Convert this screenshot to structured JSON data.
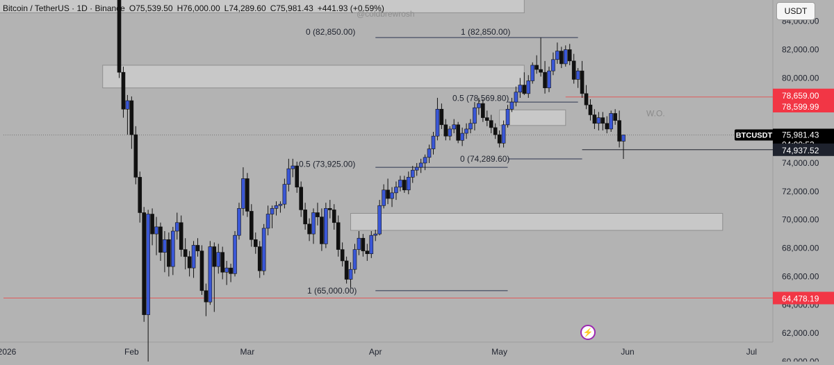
{
  "legend": {
    "symbol": "Bitcoin / TetherUS · 1D · Binance",
    "open": "O75,539.50",
    "high": "H76,000.00",
    "low": "L74,289.60",
    "close": "C75,981.43",
    "change": "+441.93 (+0.59%)"
  },
  "watermark": "@coldbrewrosh",
  "currency_button": "USDT",
  "colors": {
    "background": "#b3b3b3",
    "up_candle": "#3a57d6",
    "down_candle": "#111111",
    "resistance_line": "#e05a5a",
    "label_red": "#f23645",
    "label_dark": "#1e222d"
  },
  "icons": {
    "flash": "lightning-bolt-icon"
  },
  "chart_data": {
    "type": "candlestick",
    "x_axis": {
      "ticks": [
        "2026",
        "Feb",
        "Mar",
        "Apr",
        "May",
        "Jun",
        "Jul"
      ]
    },
    "y_axis": {
      "ticks": [
        "84,000.00",
        "82,000.00",
        "80,000.00",
        "78,000.00",
        "76,000.00",
        "74,000.00",
        "72,000.00",
        "70,000.00",
        "68,000.00",
        "66,000.00",
        "64,000.00",
        "62,000.00",
        "60,000.00"
      ],
      "range": [
        60000,
        85500
      ]
    },
    "price_labels": [
      {
        "text": "78,659.00",
        "value": 78659,
        "style": "red"
      },
      {
        "text": "78,599.99",
        "value": 78599.99,
        "style": "red"
      },
      {
        "text": "75,981.43",
        "value": 75981.43,
        "style": "dark",
        "tag": "BTCUSDT",
        "countdown": "04:00:53"
      },
      {
        "text": "74,937.52",
        "value": 74937.52,
        "style": "dark"
      },
      {
        "text": "64,478.19",
        "value": 64478.19,
        "style": "red"
      }
    ],
    "horizontal_lines": [
      {
        "value": 78659,
        "color": "#e05a5a",
        "from_date": "2026-05-17"
      },
      {
        "value": 64478.19,
        "color": "#e05a5a",
        "from_date": "2026-01-01"
      },
      {
        "value": 74937.52,
        "color": "#1e222d",
        "from_date": "2026-05-21"
      },
      {
        "value": 75981.43,
        "color": "#777777",
        "dotted": true,
        "from_date": "2026-01-01"
      }
    ],
    "annotations": [
      {
        "text": "0 (82,850.00)",
        "value": 82850
      },
      {
        "text": "1 (82,850.00)",
        "value": 82850
      },
      {
        "text": "0.5 (78,569.80)",
        "value": 78569.8
      },
      {
        "text": "0.5 (73,925.00)",
        "value": 73925
      },
      {
        "text": "0 (74,289.60)",
        "value": 74289.6
      },
      {
        "text": "1 (65,000.00)",
        "value": 65000
      },
      {
        "text": "W.O.",
        "value": 77500
      }
    ],
    "zones": [
      {
        "from_date": "2026-01-25",
        "to_date": "2026-05-07",
        "low": 79300,
        "high": 80900
      },
      {
        "from_date": "2026-03-26",
        "to_date": "2026-06-24",
        "low": 69250,
        "high": 70450
      },
      {
        "from_date": "2026-05-01",
        "to_date": "2026-05-17",
        "low": 76650,
        "high": 77750
      },
      {
        "from_date": "2025-12-28",
        "to_date": "2026-05-07",
        "low": 84600,
        "high": 86500
      }
    ],
    "fib_segments": [
      {
        "value": 82850,
        "from_date": "2026-04-01",
        "to_date": "2026-05-20"
      },
      {
        "value": 73700,
        "from_date": "2026-04-01",
        "to_date": "2026-05-03"
      },
      {
        "value": 65000,
        "from_date": "2026-04-01",
        "to_date": "2026-05-03"
      },
      {
        "value": 74289.6,
        "from_date": "2026-05-03",
        "to_date": "2026-05-21"
      },
      {
        "value": 78300,
        "from_date": "2026-05-03",
        "to_date": "2026-05-20"
      }
    ],
    "candles_start_date": "2026-01-28",
    "candles": [
      [
        89000,
        89500,
        85500,
        86000
      ],
      [
        86000,
        86500,
        80000,
        80400
      ],
      [
        80400,
        80800,
        77200,
        77800
      ],
      [
        77800,
        78800,
        76000,
        78400
      ],
      [
        78400,
        78700,
        75000,
        76000
      ],
      [
        76000,
        76600,
        72500,
        73000
      ],
      [
        73000,
        73400,
        69800,
        70500
      ],
      [
        70500,
        70900,
        62800,
        63300
      ],
      [
        63300,
        70700,
        60000,
        70400
      ],
      [
        70400,
        70800,
        68200,
        69000
      ],
      [
        69000,
        70200,
        67500,
        69500
      ],
      [
        69500,
        69800,
        67100,
        67700
      ],
      [
        67700,
        69200,
        66300,
        68600
      ],
      [
        68600,
        69100,
        66000,
        66700
      ],
      [
        66700,
        69500,
        66100,
        69200
      ],
      [
        69200,
        70500,
        68600,
        69800
      ],
      [
        69800,
        70300,
        67400,
        67900
      ],
      [
        67900,
        68700,
        66500,
        67400
      ],
      [
        67400,
        67800,
        66000,
        66600
      ],
      [
        66600,
        68500,
        65900,
        68200
      ],
      [
        68200,
        68700,
        67400,
        67800
      ],
      [
        67800,
        68200,
        64700,
        65000
      ],
      [
        65000,
        65500,
        63200,
        64200
      ],
      [
        64200,
        68500,
        64000,
        68100
      ],
      [
        68100,
        68400,
        63500,
        66700
      ],
      [
        66700,
        68300,
        66200,
        67700
      ],
      [
        67700,
        68100,
        65800,
        66300
      ],
      [
        66300,
        67100,
        65400,
        66600
      ],
      [
        66600,
        66900,
        65600,
        66200
      ],
      [
        66200,
        69200,
        66000,
        68900
      ],
      [
        68900,
        71200,
        68600,
        70800
      ],
      [
        70800,
        73700,
        70300,
        72900
      ],
      [
        72900,
        73300,
        70200,
        70600
      ],
      [
        70600,
        71100,
        68100,
        68600
      ],
      [
        68600,
        69100,
        67600,
        68100
      ],
      [
        68100,
        68500,
        65900,
        66400
      ],
      [
        66400,
        69700,
        66100,
        69400
      ],
      [
        69400,
        71000,
        68900,
        70400
      ],
      [
        70400,
        71000,
        69400,
        70800
      ],
      [
        70800,
        71300,
        70300,
        71000
      ],
      [
        71000,
        71300,
        70500,
        71100
      ],
      [
        71100,
        72900,
        70800,
        72500
      ],
      [
        72500,
        74300,
        72000,
        73600
      ],
      [
        73600,
        74300,
        73000,
        73800
      ],
      [
        73800,
        74100,
        71900,
        72300
      ],
      [
        72300,
        72700,
        70200,
        70700
      ],
      [
        70700,
        71200,
        69300,
        69700
      ],
      [
        69700,
        70100,
        68500,
        69000
      ],
      [
        69000,
        70800,
        68300,
        70500
      ],
      [
        70500,
        71200,
        69600,
        70200
      ],
      [
        70200,
        70800,
        67800,
        68300
      ],
      [
        68300,
        71200,
        68000,
        70800
      ],
      [
        70800,
        71400,
        70100,
        70700
      ],
      [
        70700,
        71100,
        69300,
        69800
      ],
      [
        69800,
        70300,
        67400,
        67900
      ],
      [
        67900,
        68400,
        66700,
        67100
      ],
      [
        67100,
        67400,
        65500,
        65800
      ],
      [
        65800,
        67000,
        65200,
        66500
      ],
      [
        66500,
        68300,
        66200,
        67900
      ],
      [
        67900,
        69200,
        67500,
        68700
      ],
      [
        68700,
        69000,
        67400,
        67800
      ],
      [
        67800,
        68300,
        67100,
        67600
      ],
      [
        67600,
        69200,
        67300,
        68900
      ],
      [
        68900,
        69300,
        68500,
        69000
      ],
      [
        69000,
        71400,
        68900,
        71000
      ],
      [
        71000,
        72500,
        70800,
        72100
      ],
      [
        72100,
        72900,
        71100,
        71500
      ],
      [
        71500,
        72300,
        70900,
        71900
      ],
      [
        71900,
        72700,
        71400,
        72300
      ],
      [
        72300,
        73100,
        72000,
        72800
      ],
      [
        72800,
        73100,
        71900,
        72100
      ],
      [
        72100,
        73400,
        71800,
        73000
      ],
      [
        73000,
        73800,
        72600,
        73500
      ],
      [
        73500,
        74000,
        73100,
        73700
      ],
      [
        73700,
        74300,
        73300,
        74000
      ],
      [
        74000,
        74600,
        73500,
        74400
      ],
      [
        74400,
        75300,
        74000,
        75000
      ],
      [
        75000,
        76200,
        74600,
        75900
      ],
      [
        75900,
        78600,
        75600,
        77800
      ],
      [
        77800,
        78200,
        76400,
        76700
      ],
      [
        76700,
        77100,
        75600,
        75900
      ],
      [
        75900,
        76600,
        75600,
        76400
      ],
      [
        76400,
        77100,
        76100,
        76700
      ],
      [
        76700,
        76900,
        75400,
        75600
      ],
      [
        75600,
        76500,
        75200,
        76100
      ],
      [
        76100,
        76800,
        75700,
        76400
      ],
      [
        76400,
        77100,
        76100,
        76800
      ],
      [
        76800,
        78300,
        76300,
        77900
      ],
      [
        77900,
        78600,
        77400,
        78200
      ],
      [
        78200,
        78500,
        76900,
        77200
      ],
      [
        77200,
        77700,
        76600,
        77000
      ],
      [
        77000,
        77400,
        76100,
        76500
      ],
      [
        76500,
        76800,
        75700,
        76000
      ],
      [
        76000,
        76300,
        75100,
        75400
      ],
      [
        75400,
        77000,
        75100,
        76700
      ],
      [
        76700,
        78100,
        76500,
        77800
      ],
      [
        77800,
        78600,
        77600,
        78300
      ],
      [
        78300,
        79400,
        78000,
        79000
      ],
      [
        79000,
        80000,
        78600,
        79500
      ],
      [
        79500,
        80400,
        78800,
        78900
      ],
      [
        78900,
        80200,
        78600,
        79800
      ],
      [
        79800,
        81100,
        79600,
        80900
      ],
      [
        80900,
        81600,
        80300,
        80600
      ],
      [
        80600,
        82850,
        80100,
        80400
      ],
      [
        80400,
        81200,
        78900,
        79300
      ],
      [
        79300,
        80800,
        79000,
        80500
      ],
      [
        80500,
        81800,
        80200,
        81300
      ],
      [
        81300,
        82500,
        81000,
        81900
      ],
      [
        81900,
        82200,
        80700,
        81000
      ],
      [
        81000,
        82300,
        80800,
        82000
      ],
      [
        82000,
        82400,
        80900,
        81200
      ],
      [
        81200,
        81700,
        79600,
        79900
      ],
      [
        79900,
        80700,
        79300,
        80500
      ],
      [
        80500,
        81200,
        78600,
        78900
      ],
      [
        78900,
        79500,
        77800,
        78100
      ],
      [
        78100,
        78500,
        77000,
        77400
      ],
      [
        77400,
        77800,
        76400,
        76800
      ],
      [
        76800,
        77600,
        76300,
        77200
      ],
      [
        77200,
        77600,
        76300,
        76800
      ],
      [
        76800,
        77300,
        76100,
        76400
      ],
      [
        76400,
        77700,
        76200,
        77500
      ],
      [
        77500,
        77800,
        76700,
        77000
      ],
      [
        77000,
        77700,
        75100,
        75540
      ],
      [
        75539.5,
        76000,
        74289.6,
        75981.43
      ]
    ]
  }
}
